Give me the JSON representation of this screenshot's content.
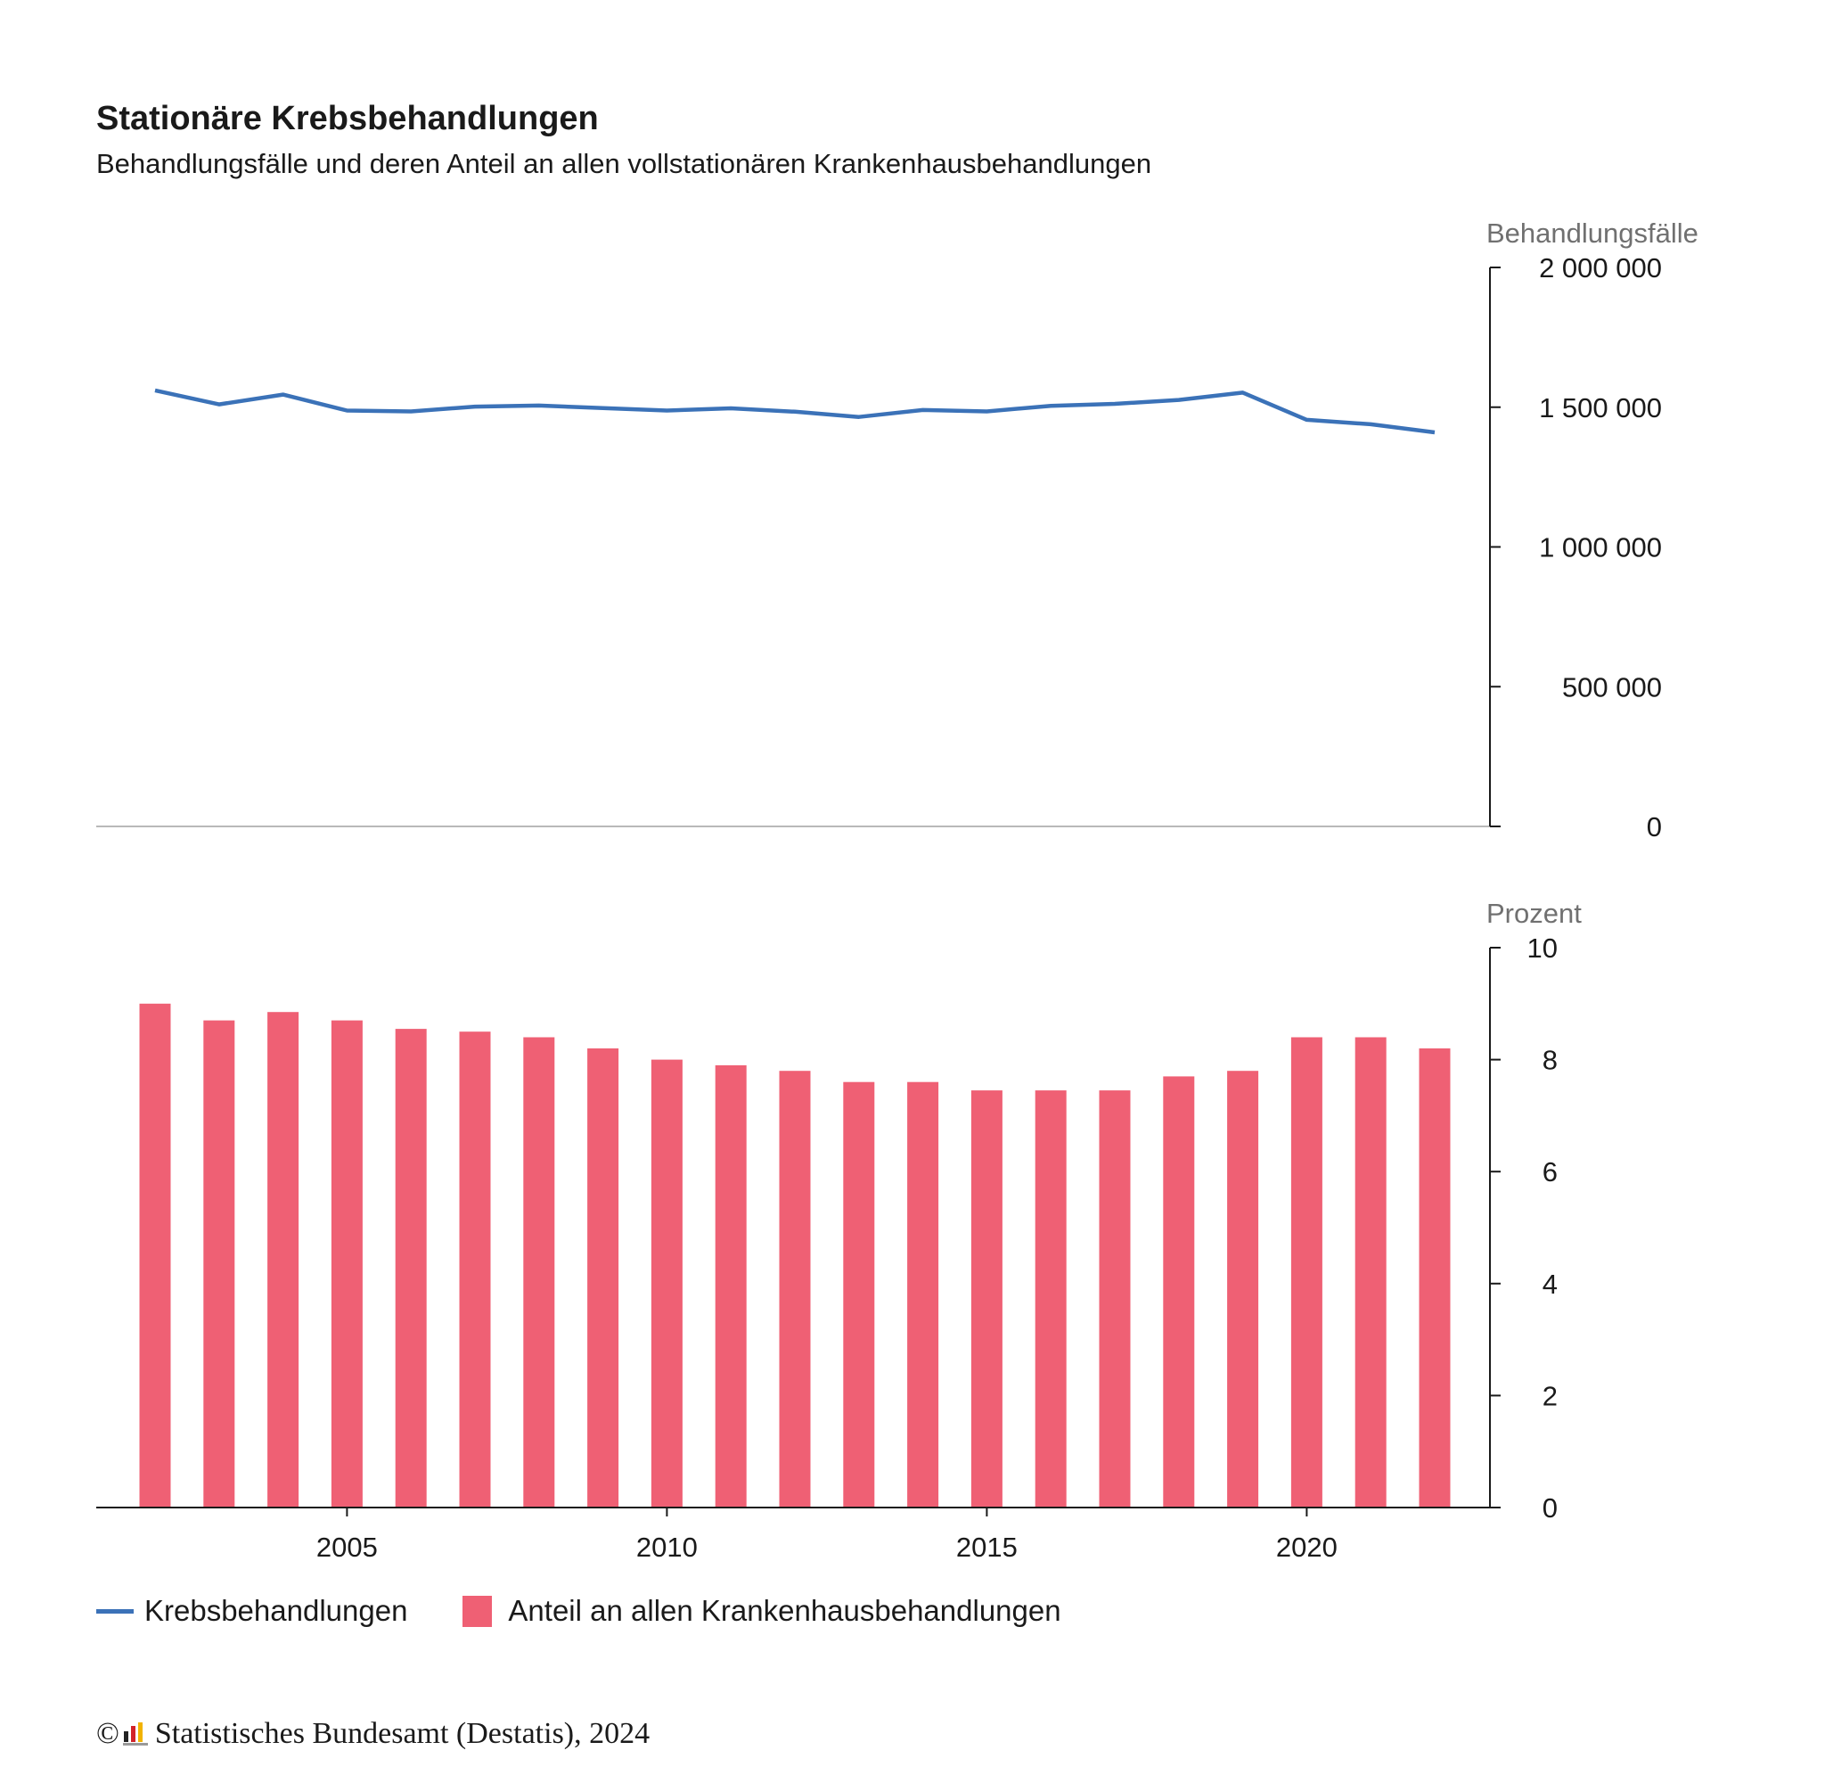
{
  "title": "Stationäre Krebsbehandlungen",
  "subtitle": "Behandlungsfälle und deren Anteil an allen vollstationären Krankenhausbehandlungen",
  "colors": {
    "line": "#3b72b8",
    "bar": "#ef6074",
    "axis": "#1a1a1a",
    "baseline": "#b9b9b9"
  },
  "legend": {
    "line_label": "Krebsbehandlungen",
    "bar_label": "Anteil an allen Krankenhausbehandlungen"
  },
  "footer": {
    "copyright": "©",
    "source": "Statistisches Bundesamt (Destatis), 2024"
  },
  "chart_data": [
    {
      "type": "line",
      "ylabel": "Behandlungsfälle",
      "ylim": [
        0,
        2000000
      ],
      "yticks": [
        0,
        500000,
        1000000,
        1500000,
        2000000
      ],
      "ytick_labels": [
        "0",
        "500 000",
        "1 000 000",
        "1 500 000",
        "2 000 000"
      ],
      "x": [
        2002,
        2003,
        2004,
        2005,
        2006,
        2007,
        2008,
        2009,
        2010,
        2011,
        2012,
        2013,
        2014,
        2015,
        2016,
        2017,
        2018,
        2019,
        2020,
        2021,
        2022
      ],
      "series": [
        {
          "name": "Krebsbehandlungen",
          "values": [
            1560000,
            1510000,
            1545000,
            1488000,
            1485000,
            1502000,
            1506000,
            1497000,
            1488000,
            1496000,
            1484000,
            1465000,
            1490000,
            1485000,
            1505000,
            1512000,
            1526000,
            1552000,
            1455000,
            1439000,
            1410000
          ]
        }
      ],
      "axis_position": "right"
    },
    {
      "type": "bar",
      "ylabel": "Prozent",
      "ylim": [
        0,
        10
      ],
      "yticks": [
        0,
        2,
        4,
        6,
        8,
        10
      ],
      "ytick_labels": [
        "0",
        "2",
        "4",
        "6",
        "8",
        "10"
      ],
      "x": [
        2002,
        2003,
        2004,
        2005,
        2006,
        2007,
        2008,
        2009,
        2010,
        2011,
        2012,
        2013,
        2014,
        2015,
        2016,
        2017,
        2018,
        2019,
        2020,
        2021,
        2022
      ],
      "xticks": [
        2005,
        2010,
        2015,
        2020
      ],
      "xtick_labels": [
        "2005",
        "2010",
        "2015",
        "2020"
      ],
      "series": [
        {
          "name": "Anteil an allen Krankenhausbehandlungen",
          "values": [
            9.0,
            8.7,
            8.85,
            8.7,
            8.55,
            8.5,
            8.4,
            8.2,
            8.0,
            7.9,
            7.8,
            7.6,
            7.6,
            7.45,
            7.45,
            7.45,
            7.7,
            7.8,
            8.4,
            8.4,
            8.2
          ]
        }
      ],
      "axis_position": "right"
    }
  ]
}
